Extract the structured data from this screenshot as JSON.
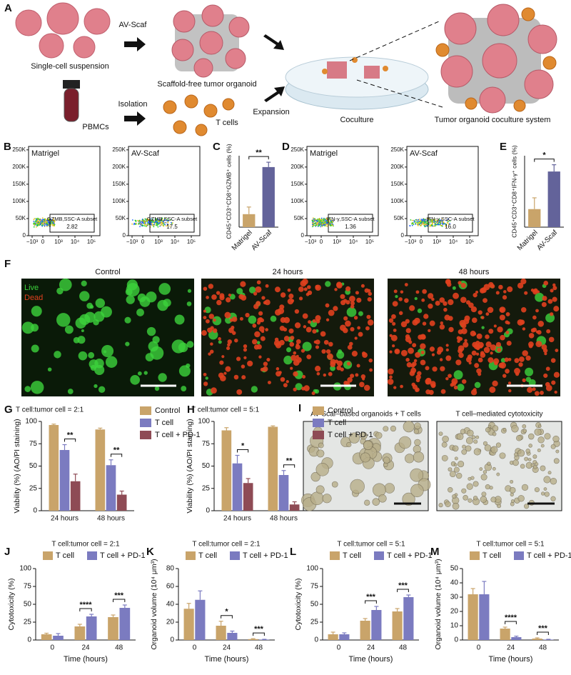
{
  "schematic": {
    "letter": "A",
    "labels": {
      "av_scaf": "AV-Scaf",
      "single_cell": "Single-cell suspension",
      "organoid": "Scaffold-free tumor organoid",
      "isolation": "Isolation",
      "pbmcs": "PBMCs",
      "t_cells": "T cells",
      "expansion": "Expansion",
      "coculture": "Coculture",
      "system": "Tumor organoid coculture system"
    }
  },
  "flow_axis": {
    "yticks": [
      "0",
      "50K",
      "100K",
      "150K",
      "200K",
      "250K"
    ],
    "xticks": [
      "−10³",
      "0",
      "10³",
      "10⁴",
      "10⁵"
    ]
  },
  "flow": [
    {
      "letter": "B",
      "gate": "GZMB,SSC-A subset",
      "plots": [
        {
          "title": "Matrigel",
          "value": "2.82"
        },
        {
          "title": "AV-Scaf",
          "value": "17.5"
        }
      ]
    },
    {
      "letter": "D",
      "gate": "IFN-γ,SSC-A subset",
      "plots": [
        {
          "title": "Matrigel",
          "value": "1.36"
        },
        {
          "title": "AV-Scaf",
          "value": "16.0"
        }
      ]
    }
  ],
  "microscopy": {
    "letter": "F",
    "legend": [
      "Live",
      "Dead"
    ],
    "titles": [
      "Control",
      "24 hours",
      "48 hours"
    ]
  },
  "brightfield": {
    "letter": "I",
    "titles": [
      "AV-Scaf–based organoids + T cells",
      "T cell–mediated cytotoxicity"
    ]
  },
  "chart_data": [
    {
      "type": "bar",
      "letter": "C",
      "y_label": "CD45⁺CD3⁺CD8⁺GZMB⁺ cells (%)",
      "categories": [
        "Matrigel",
        "AV-Scaf"
      ],
      "series": [
        {
          "values": [
            4,
            18.5
          ],
          "errors": [
            2.2,
            1.5
          ],
          "colors": [
            "#c9a46a",
            "#63639a"
          ]
        }
      ],
      "ylim": [
        0,
        22
      ],
      "significance": "**"
    },
    {
      "type": "bar",
      "letter": "E",
      "y_label": "CD45⁺CD3⁺CD8⁺IFN-γ⁺ cells (%)",
      "categories": [
        "Matrigel",
        "AV-Scaf"
      ],
      "series": [
        {
          "values": [
            4.8,
            14.8
          ],
          "errors": [
            3,
            1.8
          ],
          "colors": [
            "#c9a46a",
            "#63639a"
          ]
        }
      ],
      "ylim": [
        0,
        19
      ],
      "significance": "*"
    },
    {
      "type": "bar",
      "letter": "G",
      "title": "T cell:tumor cell = 2:1",
      "y_label": "Viability (%) (AO/PI staining)",
      "categories": [
        "24 hours",
        "48 hours"
      ],
      "series": [
        {
          "name": "Control",
          "color": "#c9a46a",
          "values": [
            96,
            91
          ],
          "errors": [
            1,
            1.5
          ]
        },
        {
          "name": "T cell",
          "color": "#7b7bc0",
          "values": [
            68,
            51
          ],
          "errors": [
            6,
            6
          ]
        },
        {
          "name": "T cell + PD-1",
          "color": "#8e4b55",
          "values": [
            33,
            18
          ],
          "errors": [
            8,
            4
          ]
        }
      ],
      "ylim": [
        0,
        100
      ],
      "yticks": [
        0,
        25,
        50,
        75,
        100
      ],
      "significance": [
        "**",
        "**"
      ],
      "legend": "right"
    },
    {
      "type": "bar",
      "letter": "H",
      "title": "T cell:tumor cell = 5:1",
      "y_label": "Viability (%) (AO/PI staining)",
      "categories": [
        "24 hours",
        "48 hours"
      ],
      "series": [
        {
          "name": "Control",
          "color": "#c9a46a",
          "values": [
            90,
            94
          ],
          "errors": [
            3,
            1
          ]
        },
        {
          "name": "T cell",
          "color": "#7b7bc0",
          "values": [
            53,
            40
          ],
          "errors": [
            9,
            5
          ]
        },
        {
          "name": "T cell + PD-1",
          "color": "#8e4b55",
          "values": [
            31,
            7
          ],
          "errors": [
            5,
            3
          ]
        }
      ],
      "ylim": [
        0,
        100
      ],
      "yticks": [
        0,
        25,
        50,
        75,
        100
      ],
      "significance": [
        "*",
        "**"
      ],
      "legend": "right"
    },
    {
      "type": "bar",
      "letter": "J",
      "title": "T cell:tumor cell = 2:1",
      "y_label": "Cytotoxicity (%)",
      "x_label": "Time (hours)",
      "categories": [
        "0",
        "24",
        "48"
      ],
      "series": [
        {
          "name": "T cell",
          "color": "#c9a46a",
          "values": [
            8,
            19,
            32
          ],
          "errors": [
            1.5,
            3,
            3
          ]
        },
        {
          "name": "T cell + PD-1",
          "color": "#7b7bc0",
          "values": [
            6,
            33,
            45
          ],
          "errors": [
            3,
            3,
            4
          ]
        }
      ],
      "ylim": [
        0,
        100
      ],
      "yticks": [
        0,
        25,
        50,
        75,
        100
      ],
      "significance": [
        "",
        "****",
        "***"
      ],
      "legend": "top"
    },
    {
      "type": "bar",
      "letter": "K",
      "title": "T cell:tumor cell = 2:1",
      "y_label": "Organoid volume (10⁴ μm³)",
      "x_label": "Time (hours)",
      "categories": [
        "0",
        "24",
        "48"
      ],
      "series": [
        {
          "name": "T cell",
          "color": "#c9a46a",
          "values": [
            35,
            16,
            1
          ],
          "errors": [
            6,
            5,
            0.5
          ]
        },
        {
          "name": "T cell + PD-1",
          "color": "#7b7bc0",
          "values": [
            45,
            8,
            0.5
          ],
          "errors": [
            10,
            2,
            0.3
          ]
        }
      ],
      "ylim": [
        0,
        80
      ],
      "yticks": [
        0,
        20,
        40,
        60,
        80
      ],
      "significance": [
        "",
        "*",
        "***"
      ],
      "legend": "top"
    },
    {
      "type": "bar",
      "letter": "L",
      "title": "T cell:tumor cell = 5:1",
      "y_label": "Cytotoxicity (%)",
      "x_label": "Time (hours)",
      "categories": [
        "0",
        "24",
        "48"
      ],
      "series": [
        {
          "name": "T cell",
          "color": "#c9a46a",
          "values": [
            8,
            27,
            40
          ],
          "errors": [
            3,
            3,
            4
          ]
        },
        {
          "name": "T cell + PD-1",
          "color": "#7b7bc0",
          "values": [
            8,
            42,
            60
          ],
          "errors": [
            2,
            5,
            3
          ]
        }
      ],
      "ylim": [
        0,
        100
      ],
      "yticks": [
        0,
        25,
        50,
        75,
        100
      ],
      "significance": [
        "",
        "***",
        "***"
      ],
      "legend": "top"
    },
    {
      "type": "bar",
      "letter": "M",
      "title": "T cell:tumor cell = 5:1",
      "y_label": "Organoid volume (10⁴ μm³)",
      "x_label": "Time (hours)",
      "categories": [
        "0",
        "24",
        "48"
      ],
      "series": [
        {
          "name": "T cell",
          "color": "#c9a46a",
          "values": [
            32,
            8,
            1
          ],
          "errors": [
            4,
            1,
            0.5
          ]
        },
        {
          "name": "T cell + PD-1",
          "color": "#7b7bc0",
          "values": [
            32,
            2,
            0.3
          ],
          "errors": [
            9,
            0.7,
            0.2
          ]
        }
      ],
      "ylim": [
        0,
        50
      ],
      "yticks": [
        0,
        10,
        20,
        30,
        40,
        50
      ],
      "significance": [
        "",
        "****",
        "***"
      ],
      "legend": "top"
    }
  ]
}
